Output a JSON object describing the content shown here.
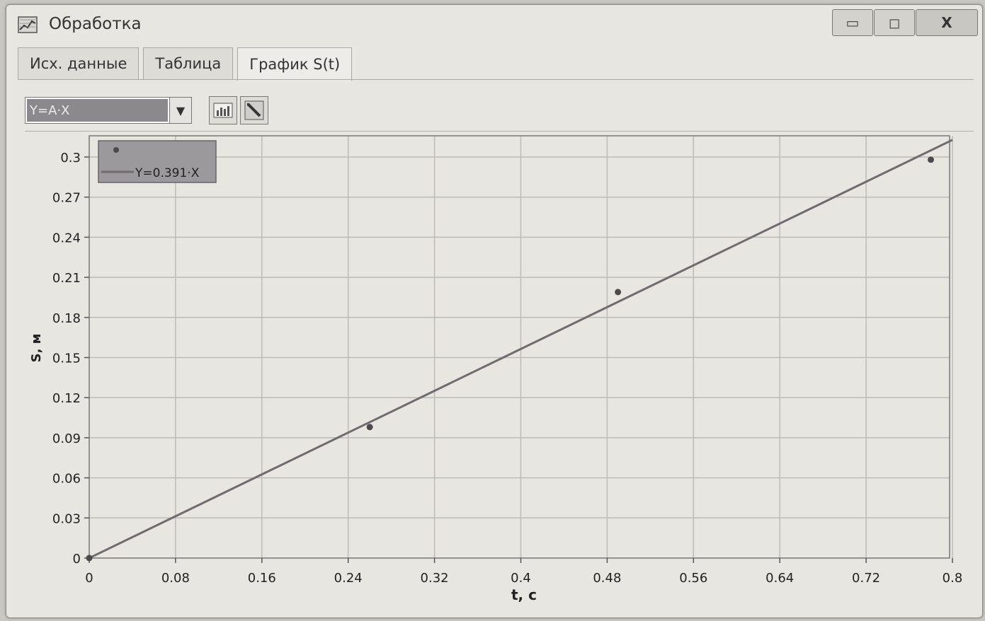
{
  "window": {
    "title": "Обработка",
    "controls": {
      "minimize": "▭",
      "maximize": "◻",
      "close": "X"
    }
  },
  "tabs": [
    {
      "label": "Исх. данные"
    },
    {
      "label": "Таблица"
    },
    {
      "label": "График S(t)"
    }
  ],
  "toolbar": {
    "model_select": {
      "value": "Y=A·X"
    }
  },
  "colors": {
    "line": "#6f6b6e",
    "points": "#4d4a4c",
    "legend_bg": "#9b999b",
    "grid": "#bdbbb6"
  },
  "icons": [
    "app-chart-icon",
    "chart-icon",
    "pen-icon",
    "chevron-down-icon"
  ],
  "chart_data": {
    "type": "scatter",
    "xlabel": "t, с",
    "ylabel": "S, м",
    "xlim": [
      0,
      0.8
    ],
    "ylim": [
      0,
      0.3
    ],
    "x_ticks": [
      0,
      0.08,
      0.16,
      0.24,
      0.32,
      0.4,
      0.48,
      0.56,
      0.64,
      0.72,
      0.8
    ],
    "y_ticks": [
      0,
      0.03,
      0.06,
      0.09,
      0.12,
      0.15,
      0.18,
      0.21,
      0.24,
      0.27,
      0.3
    ],
    "grid": true,
    "legend_position": "top-left",
    "series": [
      {
        "name": "",
        "kind": "points",
        "x": [
          0,
          0.26,
          0.49,
          0.78
        ],
        "y": [
          0,
          0.098,
          0.199,
          0.298
        ]
      },
      {
        "name": "Y=0.391·X",
        "kind": "fit-line",
        "slope": 0.391,
        "x": [
          0,
          0.8
        ],
        "y": [
          0,
          0.3128
        ]
      }
    ]
  }
}
